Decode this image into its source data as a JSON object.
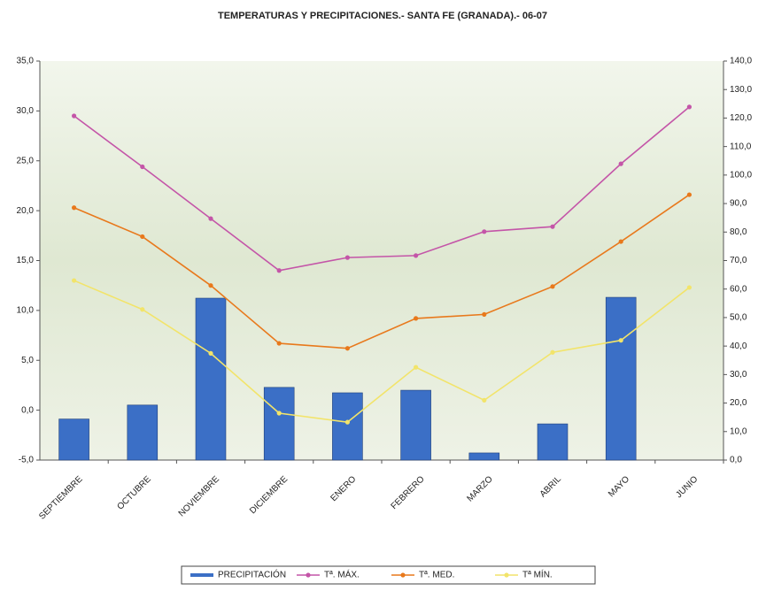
{
  "chart_data": {
    "type": "combo",
    "title": "TEMPERATURAS Y PRECIPITACIONES.- SANTA FE (GRANADA).- 06-07",
    "categories": [
      "SEPTIEMBRE",
      "OCTUBRE",
      "NOVIEMBRE",
      "DICIEMBRE",
      "ENERO",
      "FEBRERO",
      "MARZO",
      "ABRIL",
      "MAYO",
      "JUNIO"
    ],
    "series": [
      {
        "name": "PRECIPITACIÓN",
        "type": "bar",
        "axis": "y2",
        "color": "#3b6fc6",
        "values": [
          14.4,
          19.3,
          56.8,
          25.5,
          23.6,
          24.5,
          2.5,
          12.7,
          57.1,
          null
        ]
      },
      {
        "name": "Tª. MÁX.",
        "type": "line",
        "color": "#c455a8",
        "values": [
          29.5,
          24.4,
          19.2,
          14.0,
          15.3,
          15.5,
          17.9,
          18.4,
          24.7,
          30.4
        ]
      },
      {
        "name": "Tª. MED.",
        "type": "line",
        "color": "#e8791c",
        "values": [
          20.3,
          17.4,
          12.5,
          6.7,
          6.2,
          9.2,
          9.6,
          12.4,
          16.9,
          21.6
        ]
      },
      {
        "name": "Tª MÍN.",
        "type": "line",
        "color": "#f2e46a",
        "values": [
          13.0,
          10.1,
          5.7,
          -0.3,
          -1.2,
          4.3,
          1.0,
          5.8,
          7.0,
          12.3
        ]
      }
    ],
    "ylim": [
      -5,
      35
    ],
    "yticks": [
      {
        "value": -5,
        "label": "-5,0"
      },
      {
        "value": 0,
        "label": "0,0"
      },
      {
        "value": 5,
        "label": "5,0"
      },
      {
        "value": 10,
        "label": "10,0"
      },
      {
        "value": 15,
        "label": "15,0"
      },
      {
        "value": 20,
        "label": "20,0"
      },
      {
        "value": 25,
        "label": "25,0"
      },
      {
        "value": 30,
        "label": "30,0"
      },
      {
        "value": 35,
        "label": "35,0"
      }
    ],
    "y2lim": [
      0,
      140
    ],
    "y2ticks": [
      {
        "value": 0,
        "label": "0,0"
      },
      {
        "value": 10,
        "label": "10,0"
      },
      {
        "value": 20,
        "label": "20,0"
      },
      {
        "value": 30,
        "label": "30,0"
      },
      {
        "value": 40,
        "label": "40,0"
      },
      {
        "value": 50,
        "label": "50,0"
      },
      {
        "value": 60,
        "label": "60,0"
      },
      {
        "value": 70,
        "label": "70,0"
      },
      {
        "value": 80,
        "label": "80,0"
      },
      {
        "value": 90,
        "label": "90,0"
      },
      {
        "value": 100,
        "label": "100,0"
      },
      {
        "value": 110,
        "label": "110,0"
      },
      {
        "value": 120,
        "label": "120,0"
      },
      {
        "value": 130,
        "label": "130,0"
      },
      {
        "value": 140,
        "label": "140,0"
      }
    ]
  }
}
